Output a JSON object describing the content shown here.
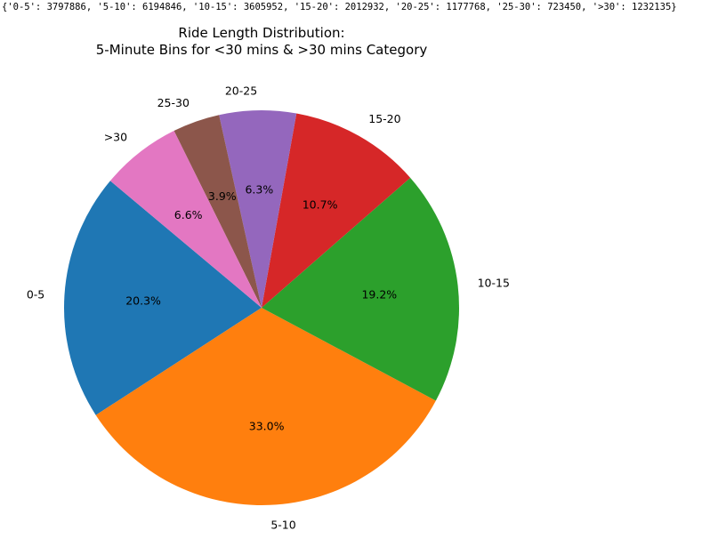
{
  "output_text": "{'0-5': 3797886, '5-10': 6194846, '10-15': 3605952, '15-20': 2012932, '20-25': 1177768, '25-30': 723450, '>30': 1232135}",
  "chart_data": {
    "type": "pie",
    "title": "Ride Length Distribution:\n5-Minute Bins for <30 mins & >30 mins Category",
    "title_lines": [
      "Ride Length Distribution:",
      "5-Minute Bins for <30 mins & >30 mins Category"
    ],
    "categories": [
      "0-5",
      "5-10",
      "10-15",
      "15-20",
      "20-25",
      "25-30",
      ">30"
    ],
    "values": [
      3797886,
      6194846,
      3605952,
      2012932,
      1177768,
      723450,
      1232135
    ],
    "pct_labels": [
      "20.3%",
      "33.0%",
      "19.2%",
      "10.7%",
      "6.3%",
      "3.9%",
      "6.6%"
    ],
    "colors": [
      "#1f77b4",
      "#ff7f0e",
      "#2ca02c",
      "#d62728",
      "#9467bd",
      "#8c564b",
      "#e377c2"
    ],
    "start_angle_deg": 140,
    "direction": "counterclockwise"
  }
}
